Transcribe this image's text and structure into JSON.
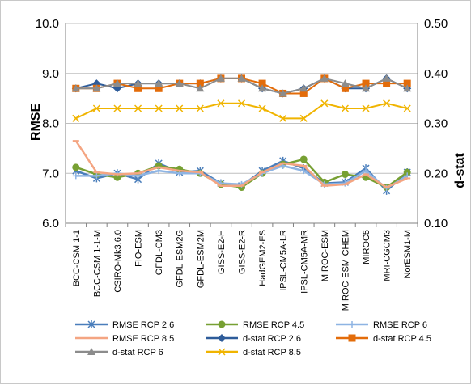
{
  "chart_data": {
    "type": "line",
    "categories": [
      "BCC-CSM 1-1",
      "BCC-CSM 1-1-M",
      "CSIRO-Mk3.6.0",
      "FIO-ESM",
      "GFDL-CM3",
      "GFDL-ESM2G",
      "GFDL-ESM2M",
      "GISS-E2-H",
      "GISS-E2-R",
      "HadGEM2-ES",
      "IPSL-CM5A-LR",
      "IPSL-CM5A-MR",
      "MIROC-ESM",
      "MIROC-ESM-CHEM",
      "MIROC5",
      "MRI-CGCM3",
      "NorESM1-M"
    ],
    "ylabel": "RMSE",
    "y2label": "d-stat",
    "ylim": [
      6.0,
      10.0
    ],
    "y2lim": [
      0.1,
      0.5
    ],
    "yticks": [
      "6.0",
      "7.0",
      "8.0",
      "9.0",
      "10.0"
    ],
    "y2ticks": [
      "0.10",
      "0.20",
      "0.30",
      "0.40",
      "0.50"
    ],
    "grid": "horizontal",
    "legend_position": "bottom",
    "series": [
      {
        "name": "RMSE RCP 2.6",
        "axis": "left",
        "color": "#4a7ebb",
        "marker": "star",
        "values": [
          7.05,
          6.9,
          7.0,
          6.88,
          7.2,
          7.02,
          7.05,
          6.8,
          6.75,
          7.05,
          7.25,
          7.1,
          6.8,
          6.82,
          7.1,
          6.65,
          7.02
        ]
      },
      {
        "name": "RMSE RCP 4.5",
        "axis": "left",
        "color": "#77a033",
        "marker": "circle",
        "values": [
          7.12,
          6.98,
          6.92,
          7.0,
          7.15,
          7.08,
          7.0,
          6.78,
          6.72,
          7.0,
          7.18,
          7.28,
          6.82,
          6.98,
          6.92,
          6.72,
          7.02
        ]
      },
      {
        "name": "RMSE RCP 6",
        "axis": "left",
        "color": "#8eb4e3",
        "marker": "plus",
        "values": [
          6.95,
          6.95,
          7.0,
          6.95,
          7.05,
          7.0,
          7.0,
          6.8,
          6.78,
          7.0,
          7.15,
          7.05,
          6.78,
          6.8,
          7.05,
          6.7,
          6.95
        ]
      },
      {
        "name": "RMSE RCP 8.5",
        "axis": "left",
        "color": "#f4a582",
        "marker": "dash",
        "values": [
          7.65,
          7.02,
          6.98,
          7.0,
          7.12,
          7.05,
          7.02,
          6.75,
          6.75,
          7.02,
          7.2,
          7.15,
          6.75,
          6.78,
          6.98,
          6.72,
          6.9
        ]
      },
      {
        "name": "d-stat RCP 2.6",
        "axis": "right",
        "color": "#2e5c9a",
        "marker": "diamond",
        "values": [
          0.37,
          0.38,
          0.37,
          0.38,
          0.38,
          0.38,
          0.38,
          0.39,
          0.39,
          0.37,
          0.36,
          0.37,
          0.39,
          0.37,
          0.37,
          0.39,
          0.37
        ]
      },
      {
        "name": "d-stat RCP 4.5",
        "axis": "right",
        "color": "#e36c0a",
        "marker": "square",
        "values": [
          0.37,
          0.37,
          0.38,
          0.37,
          0.37,
          0.38,
          0.38,
          0.39,
          0.39,
          0.38,
          0.36,
          0.36,
          0.39,
          0.37,
          0.38,
          0.38,
          0.38
        ]
      },
      {
        "name": "d-stat RCP 6",
        "axis": "right",
        "color": "#8c8c8c",
        "marker": "triangle",
        "values": [
          0.37,
          0.37,
          0.38,
          0.38,
          0.38,
          0.38,
          0.37,
          0.39,
          0.39,
          0.37,
          0.36,
          0.37,
          0.39,
          0.38,
          0.37,
          0.39,
          0.37
        ]
      },
      {
        "name": "d-stat RCP 8.5",
        "axis": "right",
        "color": "#f0b400",
        "marker": "x",
        "values": [
          0.31,
          0.33,
          0.33,
          0.33,
          0.33,
          0.33,
          0.33,
          0.34,
          0.34,
          0.33,
          0.31,
          0.31,
          0.34,
          0.33,
          0.33,
          0.34,
          0.33
        ]
      }
    ]
  }
}
